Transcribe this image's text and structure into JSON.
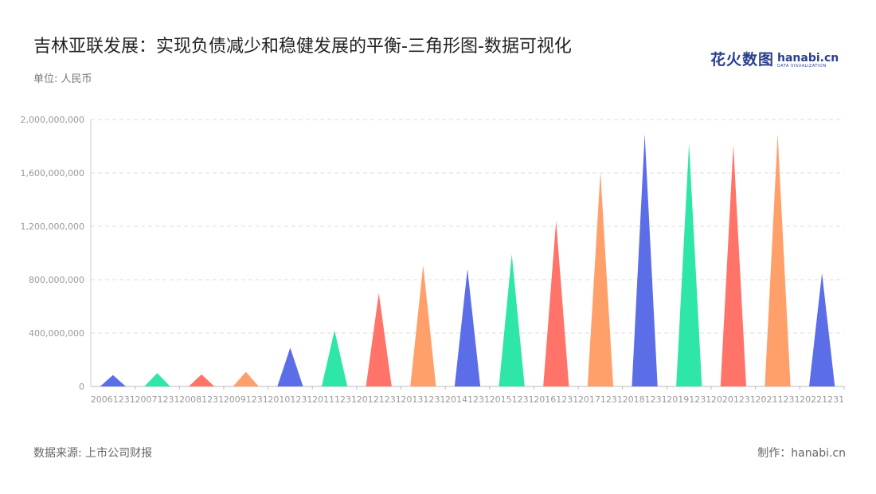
{
  "header": {
    "title": "吉林亚联发展：实现负债减少和稳健发展的平衡-三角形图-数据可视化",
    "unit": "单位: 人民币"
  },
  "logo": {
    "cn": "花火数图",
    "en": "hanabi.cn",
    "sub": "DATA VISUALIZATION"
  },
  "footer": {
    "source": "数据来源: 上市公司财报",
    "credit": "制作：hanabi.cn"
  },
  "chart_data": {
    "type": "bar",
    "bar_shape": "triangle",
    "categories": [
      "20061231",
      "20071231",
      "20081231",
      "20091231",
      "20101231",
      "20111231",
      "20121231",
      "20131231",
      "20141231",
      "20151231",
      "20161231",
      "20171231",
      "20181231",
      "20191231",
      "20201231",
      "20211231",
      "20221231"
    ],
    "values": [
      85000000,
      100000000,
      90000000,
      110000000,
      290000000,
      420000000,
      700000000,
      910000000,
      880000000,
      990000000,
      1240000000,
      1610000000,
      1890000000,
      1820000000,
      1810000000,
      1890000000,
      850000000
    ],
    "colors": [
      "#5b6ee8",
      "#2ee6a8",
      "#ff7369",
      "#ffa06b"
    ],
    "ylim": [
      0,
      2000000000
    ],
    "yticks": [
      0,
      400000000,
      800000000,
      1200000000,
      1600000000,
      2000000000
    ],
    "ytick_labels": [
      "0",
      "400,000,000",
      "800,000,000",
      "1,200,000,000",
      "1,600,000,000",
      "2,000,000,000"
    ],
    "grid": true,
    "xlabel": "",
    "ylabel": ""
  }
}
